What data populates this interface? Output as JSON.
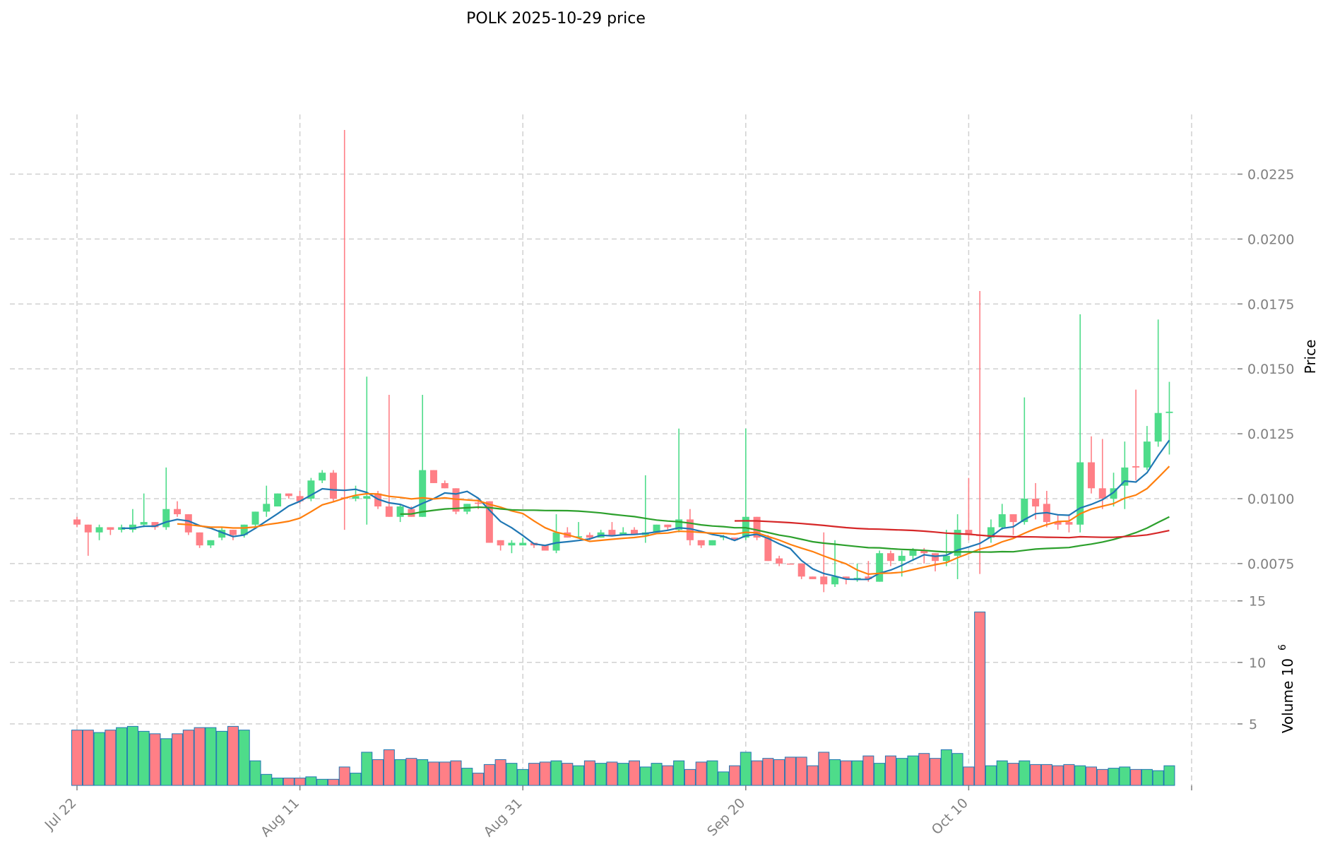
{
  "chart_data": {
    "type": "candlestick",
    "title": "POLK  2025-10-29  price",
    "ylabel": "Price",
    "volume_label": "Volume  10",
    "volume_exponent": "6",
    "x_start_date": "2025-07-22",
    "x_tick_labels": [
      "Jul 22",
      "Aug 11",
      "Aug 31",
      "Sep 20",
      "Oct 10"
    ],
    "x_tick_indices": [
      0,
      20,
      40,
      60,
      80,
      100
    ],
    "y_ticks": [
      "0.0075",
      "0.0100",
      "0.0125",
      "0.0150",
      "0.0175",
      "0.0200",
      "0.0225"
    ],
    "ylim": [
      0.0063,
      0.0248
    ],
    "volume_ticks": [
      "5",
      "10",
      "15"
    ],
    "volume_ylim": [
      0,
      15.5
    ],
    "grid": true,
    "colors": {
      "up": "#4edc8a",
      "down": "#ff7f86",
      "volume_edge": "#1f77b4",
      "mav": [
        "#1f77b4",
        "#ff7f0e",
        "#2ca02c",
        "#d62728"
      ]
    },
    "mav_windows": [
      5,
      10,
      30,
      60
    ],
    "ohlc": [
      [
        0.0092,
        0.0093,
        0.0089,
        0.009
      ],
      [
        0.009,
        0.009,
        0.0078,
        0.0087
      ],
      [
        0.0087,
        0.009,
        0.0084,
        0.0089
      ],
      [
        0.0089,
        0.0089,
        0.0086,
        0.0088
      ],
      [
        0.0088,
        0.009,
        0.0087,
        0.0089
      ],
      [
        0.0088,
        0.0096,
        0.0087,
        0.009
      ],
      [
        0.009,
        0.0102,
        0.0089,
        0.0091
      ],
      [
        0.0091,
        0.0091,
        0.0088,
        0.0089
      ],
      [
        0.0089,
        0.0112,
        0.0088,
        0.0096
      ],
      [
        0.0096,
        0.0099,
        0.0093,
        0.0094
      ],
      [
        0.0094,
        0.0094,
        0.0086,
        0.0087
      ],
      [
        0.0087,
        0.0087,
        0.0081,
        0.0082
      ],
      [
        0.0082,
        0.0084,
        0.0081,
        0.0084
      ],
      [
        0.0085,
        0.0089,
        0.0084,
        0.0088
      ],
      [
        0.0088,
        0.0088,
        0.0084,
        0.0086
      ],
      [
        0.0086,
        0.009,
        0.0085,
        0.009
      ],
      [
        0.009,
        0.0095,
        0.0089,
        0.0095
      ],
      [
        0.0095,
        0.0105,
        0.0093,
        0.0098
      ],
      [
        0.0097,
        0.0102,
        0.0097,
        0.0102
      ],
      [
        0.0102,
        0.0102,
        0.01,
        0.0101
      ],
      [
        0.0101,
        0.0103,
        0.0098,
        0.0099
      ],
      [
        0.01,
        0.0108,
        0.0099,
        0.0107
      ],
      [
        0.0107,
        0.0111,
        0.0106,
        0.011
      ],
      [
        0.011,
        0.0111,
        0.0099,
        0.01
      ],
      [
        0.01005,
        0.0242,
        0.0088,
        0.01
      ],
      [
        0.01,
        0.0105,
        0.0099,
        0.0101
      ],
      [
        0.01,
        0.0147,
        0.009,
        0.0101
      ],
      [
        0.0102,
        0.0103,
        0.0096,
        0.0097
      ],
      [
        0.0097,
        0.014,
        0.0093,
        0.0093
      ],
      [
        0.0093,
        0.0098,
        0.0091,
        0.0097
      ],
      [
        0.0096,
        0.0097,
        0.0093,
        0.0093
      ],
      [
        0.0093,
        0.014,
        0.0093,
        0.0111
      ],
      [
        0.0111,
        0.0111,
        0.0106,
        0.0106
      ],
      [
        0.0106,
        0.0107,
        0.0104,
        0.0104
      ],
      [
        0.0104,
        0.0104,
        0.0094,
        0.0095
      ],
      [
        0.0095,
        0.0098,
        0.0094,
        0.0098
      ],
      [
        0.00985,
        0.01,
        0.0096,
        0.0098
      ],
      [
        0.0099,
        0.0099,
        0.0083,
        0.0083
      ],
      [
        0.0084,
        0.0084,
        0.008,
        0.0082
      ],
      [
        0.0082,
        0.0084,
        0.0079,
        0.0083
      ],
      [
        0.0082,
        0.0085,
        0.0082,
        0.0083
      ],
      [
        0.0083,
        0.0083,
        0.0081,
        0.0082
      ],
      [
        0.0082,
        0.0082,
        0.008,
        0.008
      ],
      [
        0.008,
        0.0094,
        0.0079,
        0.0087
      ],
      [
        0.0087,
        0.0089,
        0.0085,
        0.0085
      ],
      [
        0.0085,
        0.0091,
        0.0085,
        0.00855
      ],
      [
        0.0086,
        0.0087,
        0.0084,
        0.0085
      ],
      [
        0.0085,
        0.0088,
        0.0085,
        0.0087
      ],
      [
        0.0088,
        0.0091,
        0.0086,
        0.0086
      ],
      [
        0.0086,
        0.0089,
        0.0086,
        0.0087
      ],
      [
        0.0088,
        0.0089,
        0.0086,
        0.0086
      ],
      [
        0.0086,
        0.0109,
        0.0083,
        0.0087
      ],
      [
        0.0087,
        0.009,
        0.0087,
        0.009
      ],
      [
        0.009,
        0.009,
        0.0088,
        0.0089
      ],
      [
        0.0088,
        0.0127,
        0.0087,
        0.0092
      ],
      [
        0.0092,
        0.0096,
        0.0082,
        0.0084
      ],
      [
        0.0084,
        0.0084,
        0.0081,
        0.0082
      ],
      [
        0.0082,
        0.0084,
        0.0082,
        0.0084
      ],
      [
        0.0085,
        0.0086,
        0.0084,
        0.00855
      ],
      [
        0.0085,
        0.0085,
        0.0084,
        0.0084
      ],
      [
        0.0085,
        0.0127,
        0.0084,
        0.0093
      ],
      [
        0.0093,
        0.0093,
        0.0084,
        0.0085
      ],
      [
        0.0085,
        0.0086,
        0.0076,
        0.0076
      ],
      [
        0.0077,
        0.0078,
        0.0074,
        0.0075
      ],
      [
        0.0075,
        0.0075,
        0.0075,
        0.00748
      ],
      [
        0.0075,
        0.0075,
        0.0069,
        0.007
      ],
      [
        0.007,
        0.007,
        0.0069,
        0.0069
      ],
      [
        0.007,
        0.0087,
        0.0064,
        0.0067
      ],
      [
        0.0067,
        0.0084,
        0.0066,
        0.007
      ],
      [
        0.007,
        0.007,
        0.0067,
        0.0069
      ],
      [
        0.0069,
        0.0075,
        0.0068,
        0.00695
      ],
      [
        0.007,
        0.0076,
        0.0068,
        0.0069
      ],
      [
        0.0068,
        0.008,
        0.0068,
        0.0079
      ],
      [
        0.0079,
        0.008,
        0.0074,
        0.0076
      ],
      [
        0.0076,
        0.008,
        0.007,
        0.0078
      ],
      [
        0.0078,
        0.0081,
        0.0076,
        0.008
      ],
      [
        0.008,
        0.0081,
        0.0075,
        0.0079
      ],
      [
        0.0079,
        0.0079,
        0.0072,
        0.0076
      ],
      [
        0.0076,
        0.0088,
        0.0074,
        0.0078
      ],
      [
        0.0078,
        0.0094,
        0.0069,
        0.0088
      ],
      [
        0.0088,
        0.0108,
        0.0084,
        0.0086
      ],
      [
        0.0086,
        0.018,
        0.0071,
        0.00858
      ],
      [
        0.0085,
        0.0092,
        0.0083,
        0.0089
      ],
      [
        0.0089,
        0.0098,
        0.0088,
        0.0094
      ],
      [
        0.0094,
        0.0094,
        0.0086,
        0.0091
      ],
      [
        0.0091,
        0.0139,
        0.009,
        0.01
      ],
      [
        0.01,
        0.0106,
        0.0092,
        0.0097
      ],
      [
        0.0098,
        0.0103,
        0.0089,
        0.0091
      ],
      [
        0.0091,
        0.0094,
        0.0088,
        0.009
      ],
      [
        0.0091,
        0.0094,
        0.0087,
        0.009
      ],
      [
        0.009,
        0.0171,
        0.0087,
        0.0114
      ],
      [
        0.0114,
        0.0124,
        0.0102,
        0.0104
      ],
      [
        0.0104,
        0.0123,
        0.0096,
        0.01
      ],
      [
        0.01,
        0.011,
        0.0097,
        0.0104
      ],
      [
        0.0105,
        0.0122,
        0.0096,
        0.0112
      ],
      [
        0.01125,
        0.0142,
        0.0107,
        0.0112
      ],
      [
        0.0112,
        0.0128,
        0.0111,
        0.0122
      ],
      [
        0.0122,
        0.0169,
        0.012,
        0.0133
      ],
      [
        0.0133,
        0.0145,
        0.0117,
        0.01335
      ]
    ],
    "volume": [
      4.5,
      4.5,
      4.3,
      4.5,
      4.7,
      4.8,
      4.4,
      4.2,
      3.8,
      4.2,
      4.5,
      4.7,
      4.7,
      4.4,
      4.8,
      4.5,
      2.0,
      0.9,
      0.6,
      0.6,
      0.6,
      0.7,
      0.5,
      0.5,
      1.5,
      1.0,
      2.7,
      2.1,
      2.9,
      2.1,
      2.2,
      2.1,
      1.9,
      1.9,
      2.0,
      1.4,
      1.0,
      1.7,
      2.1,
      1.8,
      1.3,
      1.8,
      1.9,
      2.0,
      1.8,
      1.6,
      2.0,
      1.8,
      1.9,
      1.8,
      2.0,
      1.5,
      1.8,
      1.6,
      2.0,
      1.3,
      1.9,
      2.0,
      1.1,
      1.6,
      2.7,
      2.0,
      2.2,
      2.1,
      2.3,
      2.3,
      1.6,
      2.7,
      2.1,
      2.0,
      2.0,
      2.4,
      1.8,
      2.4,
      2.2,
      2.4,
      2.6,
      2.2,
      2.9,
      2.6,
      1.5,
      14.1,
      1.6,
      2.0,
      1.8,
      2.0,
      1.7,
      1.7,
      1.6,
      1.7,
      1.6,
      1.5,
      1.3,
      1.4,
      1.5,
      1.3,
      1.3,
      1.2,
      1.6
    ]
  }
}
